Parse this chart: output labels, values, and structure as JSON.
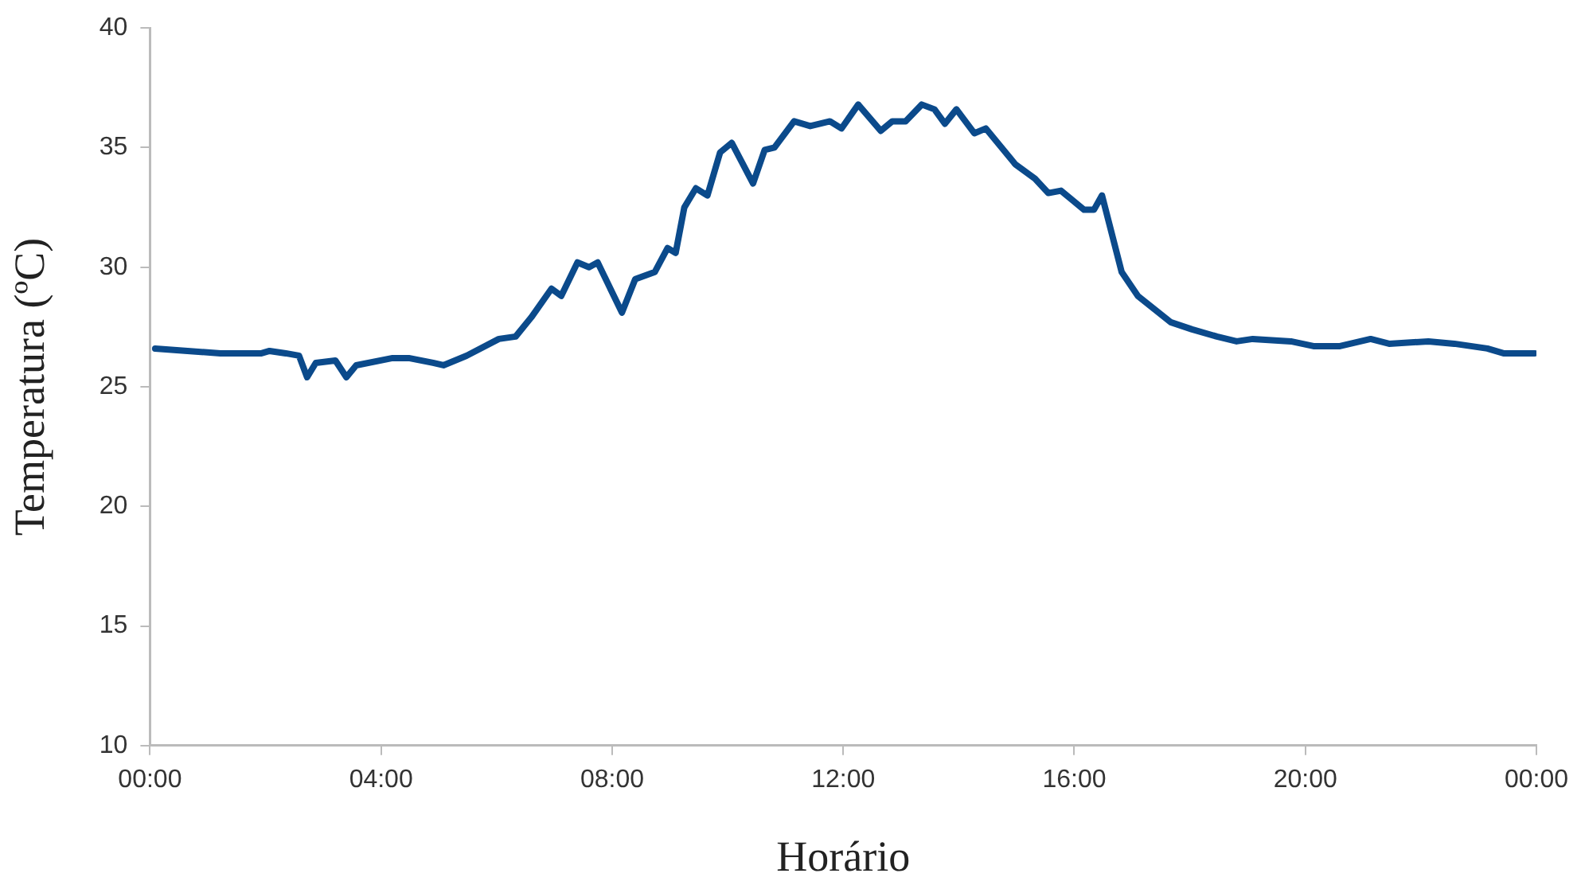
{
  "chart_data": {
    "type": "line",
    "xlabel": "Horário",
    "ylabel": "Temperatura (ºC)",
    "xlim": [
      0,
      24
    ],
    "xticks": [
      {
        "value": 0,
        "label": "00:00"
      },
      {
        "value": 4,
        "label": "04:00"
      },
      {
        "value": 8,
        "label": "08:00"
      },
      {
        "value": 12,
        "label": "12:00"
      },
      {
        "value": 16,
        "label": "16:00"
      },
      {
        "value": 20,
        "label": "20:00"
      },
      {
        "value": 24,
        "label": "00:00"
      }
    ],
    "ylim": [
      10,
      40
    ],
    "yticks": [
      10,
      15,
      20,
      25,
      30,
      35,
      40
    ],
    "grid": false,
    "legend": false,
    "marker": "none",
    "line_style": "solid",
    "series": [
      {
        "color": "#0b4a8b",
        "x": [
          0.09,
          0.65,
          1.22,
          1.65,
          1.93,
          2.07,
          2.35,
          2.58,
          2.72,
          2.87,
          3.21,
          3.4,
          3.57,
          4.2,
          4.48,
          4.9,
          5.08,
          5.48,
          6.04,
          6.33,
          6.6,
          6.95,
          7.12,
          7.4,
          7.6,
          7.75,
          8.17,
          8.4,
          8.74,
          8.96,
          9.1,
          9.25,
          9.45,
          9.65,
          9.87,
          10.07,
          10.44,
          10.64,
          10.81,
          11.15,
          11.43,
          11.77,
          11.97,
          12.26,
          12.65,
          12.85,
          13.08,
          13.36,
          13.58,
          13.76,
          13.96,
          14.27,
          14.47,
          14.98,
          15.32,
          15.55,
          15.77,
          16.17,
          16.34,
          16.48,
          16.82,
          17.1,
          17.67,
          18.04,
          18.47,
          18.81,
          19.09,
          19.75,
          20.14,
          20.6,
          21.13,
          21.45,
          22.13,
          22.58,
          23.15,
          23.43,
          23.97
        ],
        "values": [
          26.6,
          26.5,
          26.4,
          26.4,
          26.4,
          26.5,
          26.4,
          26.3,
          25.4,
          26.0,
          26.1,
          25.4,
          25.9,
          26.2,
          26.2,
          26.0,
          25.9,
          26.3,
          27.0,
          27.1,
          27.9,
          29.1,
          28.8,
          30.2,
          30.0,
          30.2,
          28.1,
          29.5,
          29.8,
          30.8,
          30.6,
          32.5,
          33.3,
          33.0,
          34.8,
          35.2,
          33.5,
          34.9,
          35.0,
          36.1,
          35.9,
          36.1,
          35.8,
          36.8,
          35.7,
          36.1,
          36.1,
          36.8,
          36.6,
          36.0,
          36.6,
          35.6,
          35.8,
          34.3,
          33.7,
          33.1,
          33.2,
          32.4,
          32.4,
          33.0,
          29.8,
          28.8,
          27.7,
          27.4,
          27.1,
          26.9,
          27.0,
          26.9,
          26.7,
          26.7,
          27.0,
          26.8,
          26.9,
          26.8,
          26.6,
          26.4,
          26.4
        ]
      }
    ]
  }
}
